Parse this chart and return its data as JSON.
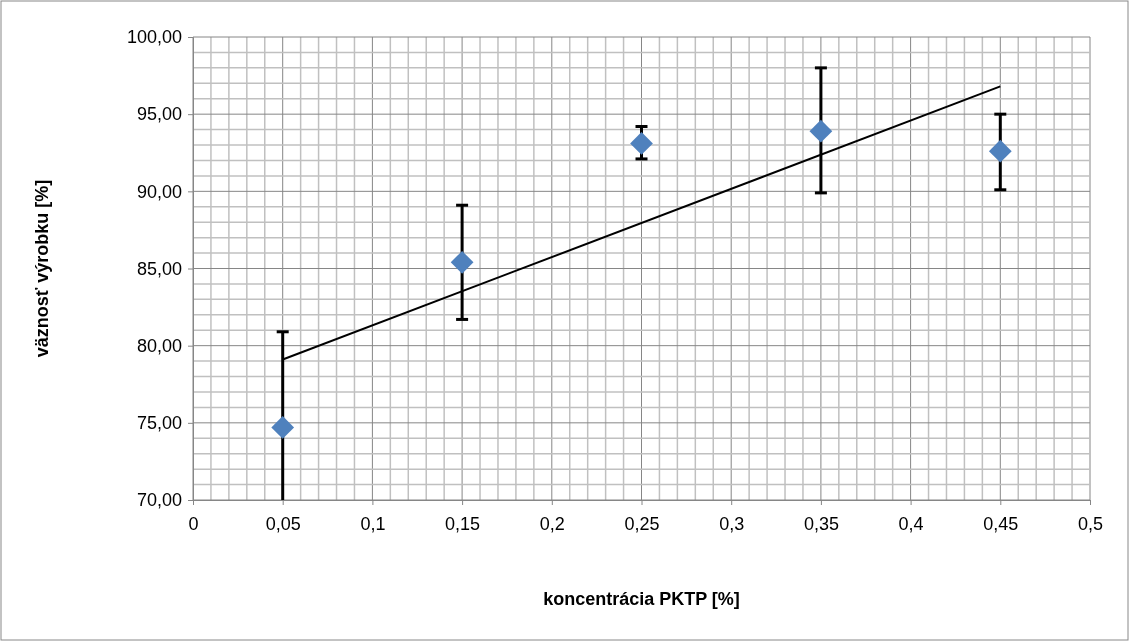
{
  "chart_data": {
    "type": "scatter",
    "xlabel": "koncentrácia PKTP [%]",
    "ylabel": "väznosť výrobku [%]",
    "xlim": [
      0,
      0.5
    ],
    "ylim": [
      70,
      100
    ],
    "xticks": [
      0,
      {
        "value": 0.05,
        "label": "0,05"
      },
      {
        "value": 0.1,
        "label": "0,1"
      },
      {
        "value": 0.15,
        "label": "0,15"
      },
      {
        "value": 0.2,
        "label": "0,2"
      },
      {
        "value": 0.25,
        "label": "0,25"
      },
      {
        "value": 0.3,
        "label": "0,3"
      },
      {
        "value": 0.35,
        "label": "0,35"
      },
      {
        "value": 0.4,
        "label": "0,4"
      },
      {
        "value": 0.45,
        "label": "0,45"
      },
      {
        "value": 0.5,
        "label": "0,5"
      }
    ],
    "yticks": [
      {
        "value": 70,
        "label": "70,00"
      },
      {
        "value": 75,
        "label": "75,00"
      },
      {
        "value": 80,
        "label": "80,00"
      },
      {
        "value": 85,
        "label": "85,00"
      },
      {
        "value": 90,
        "label": "90,00"
      },
      {
        "value": 95,
        "label": "95,00"
      },
      {
        "value": 100,
        "label": "100,00"
      }
    ],
    "grid": true,
    "series": [
      {
        "marker": "diamond",
        "color": "#4f81bd",
        "x": [
          0.05,
          0.15,
          0.25,
          0.35,
          0.45
        ],
        "values": [
          74.7,
          85.4,
          93.1,
          93.9,
          92.6
        ],
        "errors": [
          [
            70,
            80.9
          ],
          [
            81.7,
            89.1
          ],
          [
            92.1,
            94.2
          ],
          [
            89.9,
            98.0
          ],
          [
            90.1,
            95.0
          ]
        ]
      },
      {
        "type": "line",
        "marker": "none",
        "color": "#000000",
        "x": [
          0.05,
          0.45
        ],
        "values": [
          79.1,
          96.8
        ]
      }
    ]
  }
}
